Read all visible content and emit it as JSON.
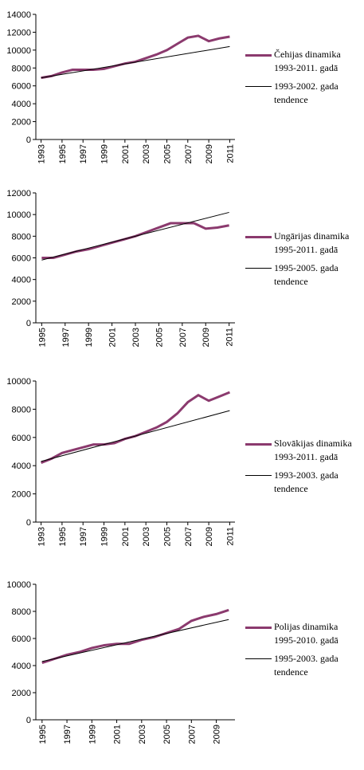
{
  "chart_data": [
    {
      "type": "line",
      "xlim": [
        1992.5,
        2011.5
      ],
      "xticks": [
        1993,
        1995,
        1997,
        1999,
        2001,
        2003,
        2005,
        2007,
        2009,
        2011
      ],
      "ylim": [
        0,
        14000
      ],
      "yticks": [
        0,
        2000,
        4000,
        6000,
        8000,
        10000,
        12000,
        14000
      ],
      "series": [
        {
          "name": "Čehijas dinamika 1993-2011. gadā",
          "color": "#8b3a6e",
          "x": [
            1993,
            1994,
            1995,
            1996,
            1997,
            1998,
            1999,
            2000,
            2001,
            2002,
            2003,
            2004,
            2005,
            2006,
            2007,
            2008,
            2009,
            2010,
            2011
          ],
          "values": [
            6900,
            7100,
            7500,
            7800,
            7800,
            7800,
            7900,
            8200,
            8500,
            8700,
            9100,
            9500,
            10000,
            10700,
            11400,
            11600,
            11000,
            11300,
            11500
          ]
        },
        {
          "name": "1993-2002. gada tendence",
          "color": "#000000",
          "x": [
            1993,
            2011
          ],
          "values": [
            6900,
            10400
          ]
        }
      ]
    },
    {
      "type": "line",
      "xlim": [
        1994.5,
        2011.5
      ],
      "xticks": [
        1995,
        1997,
        1999,
        2001,
        2003,
        2005,
        2007,
        2009,
        2011
      ],
      "ylim": [
        0,
        12000
      ],
      "yticks": [
        0,
        2000,
        4000,
        6000,
        8000,
        10000,
        12000
      ],
      "series": [
        {
          "name": "Ungārijas dinamika 1995-2011. gadā",
          "color": "#8b3a6e",
          "x": [
            1995,
            1996,
            1997,
            1998,
            1999,
            2000,
            2001,
            2002,
            2003,
            2004,
            2005,
            2006,
            2007,
            2008,
            2009,
            2010,
            2011
          ],
          "values": [
            6000,
            6000,
            6300,
            6600,
            6800,
            7100,
            7400,
            7700,
            8000,
            8400,
            8800,
            9200,
            9200,
            9200,
            8700,
            8800,
            9000
          ]
        },
        {
          "name": "1995-2005. gada tendence",
          "color": "#000000",
          "x": [
            1995,
            2011
          ],
          "values": [
            5800,
            10200
          ]
        }
      ]
    },
    {
      "type": "line",
      "xlim": [
        1992.5,
        2011.5
      ],
      "xticks": [
        1993,
        1995,
        1997,
        1999,
        2001,
        2003,
        2005,
        2007,
        2009,
        2011
      ],
      "ylim": [
        0,
        10000
      ],
      "yticks": [
        0,
        2000,
        4000,
        6000,
        8000,
        10000
      ],
      "series": [
        {
          "name": "Slovākijas dinamika 1993-2011. gadā",
          "color": "#8b3a6e",
          "x": [
            1993,
            1994,
            1995,
            1996,
            1997,
            1998,
            1999,
            2000,
            2001,
            2002,
            2003,
            2004,
            2005,
            2006,
            2007,
            2008,
            2009,
            2010,
            2011
          ],
          "values": [
            4200,
            4500,
            4900,
            5100,
            5300,
            5500,
            5500,
            5600,
            5900,
            6100,
            6400,
            6700,
            7100,
            7700,
            8500,
            9000,
            8600,
            8900,
            9200
          ]
        },
        {
          "name": "1993-2003. gada tendence",
          "color": "#000000",
          "x": [
            1993,
            2011
          ],
          "values": [
            4300,
            7900
          ]
        }
      ]
    },
    {
      "type": "line",
      "xlim": [
        1994.5,
        2010.5
      ],
      "xticks": [
        1995,
        1997,
        1999,
        2001,
        2003,
        2005,
        2007,
        2009
      ],
      "ylim": [
        0,
        10000
      ],
      "yticks": [
        0,
        2000,
        4000,
        6000,
        8000,
        10000
      ],
      "series": [
        {
          "name": "Polijas dinamika 1995-2010. gadā",
          "color": "#8b3a6e",
          "x": [
            1995,
            1996,
            1997,
            1998,
            1999,
            2000,
            2001,
            2002,
            2003,
            2004,
            2005,
            2006,
            2007,
            2008,
            2009,
            2010
          ],
          "values": [
            4200,
            4500,
            4800,
            5000,
            5300,
            5500,
            5600,
            5600,
            5900,
            6100,
            6400,
            6700,
            7300,
            7600,
            7800,
            8100
          ]
        },
        {
          "name": "1995-2003. gada tendence",
          "color": "#000000",
          "x": [
            1995,
            2010
          ],
          "values": [
            4300,
            7400
          ]
        }
      ]
    }
  ]
}
